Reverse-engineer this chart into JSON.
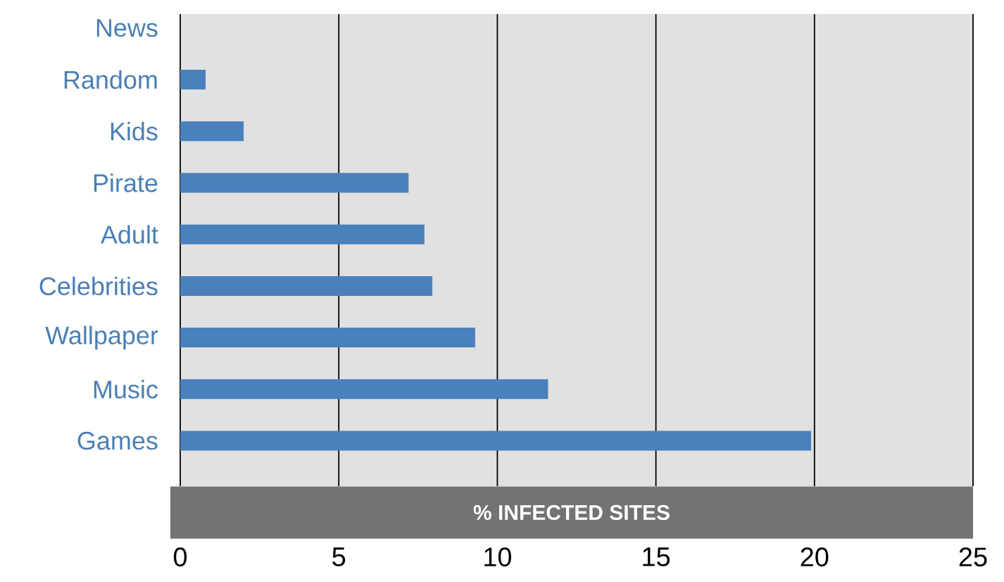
{
  "chart_data": {
    "type": "bar",
    "orientation": "horizontal",
    "xlabel": "% INFECTED SITES",
    "categories": [
      "News",
      "Random",
      "Kids",
      "Pirate",
      "Adult",
      "Celebrities",
      "Wallpaper",
      "Music",
      "Games"
    ],
    "values": [
      0,
      0.8,
      2,
      7.2,
      7.7,
      7.95,
      9.3,
      11.6,
      19.9
    ],
    "color": "#4a81bd",
    "xlim": [
      0,
      25
    ],
    "xticks": [
      0,
      5,
      10,
      15,
      20,
      25
    ],
    "grid": "x"
  }
}
